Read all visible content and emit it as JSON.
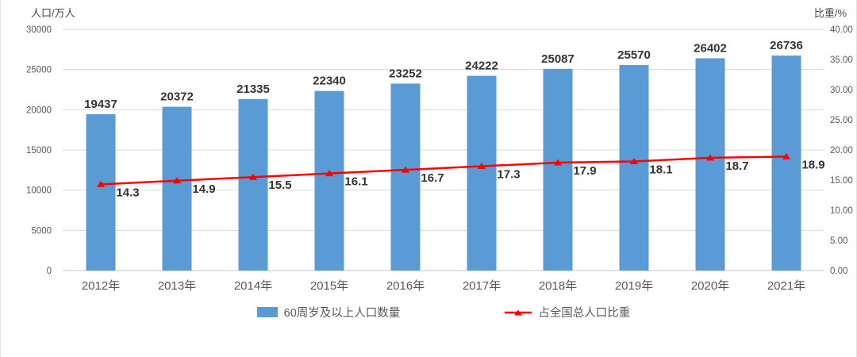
{
  "chart_data": {
    "type": "bar",
    "subtype": "bar-line-combo",
    "categories": [
      "2012年",
      "2013年",
      "2014年",
      "2015年",
      "2016年",
      "2017年",
      "2018年",
      "2019年",
      "2020年",
      "2021年"
    ],
    "series": [
      {
        "name": "60周岁及以上人口数量",
        "type": "bar",
        "axis": "left",
        "color": "#5B9BD5",
        "values": [
          19437,
          20372,
          21335,
          22340,
          23252,
          24222,
          25087,
          25570,
          26402,
          26736
        ]
      },
      {
        "name": "占全国总人口比重",
        "type": "line",
        "axis": "right",
        "color": "#FF0000",
        "marker": "triangle",
        "values": [
          14.3,
          14.9,
          15.5,
          16.1,
          16.7,
          17.3,
          17.9,
          18.1,
          18.7,
          18.9
        ]
      }
    ],
    "left_axis": {
      "title": "人口/万人",
      "min": 0,
      "max": 30000,
      "step": 5000,
      "ticks": [
        0,
        5000,
        10000,
        15000,
        20000,
        25000,
        30000
      ],
      "tick_labels": [
        "0",
        "5000",
        "10000",
        "15000",
        "20000",
        "25000",
        "30000"
      ]
    },
    "right_axis": {
      "title": "比重/%",
      "min": 0,
      "max": 40,
      "step": 5,
      "ticks": [
        0,
        5,
        10,
        15,
        20,
        25,
        30,
        35,
        40
      ],
      "tick_labels": [
        "0.00",
        "5.00",
        "10.00",
        "15.00",
        "20.00",
        "25.00",
        "30.00",
        "35.00",
        "40.00"
      ]
    },
    "grid": true,
    "legend_position": "bottom",
    "colors": {
      "grid": "#D9D9D9",
      "axis_line": "#C6C6C6",
      "tick_text": "#595959",
      "data_label_text": "#343434",
      "bar": "#5B9BD5",
      "line": "#FF0000"
    }
  }
}
